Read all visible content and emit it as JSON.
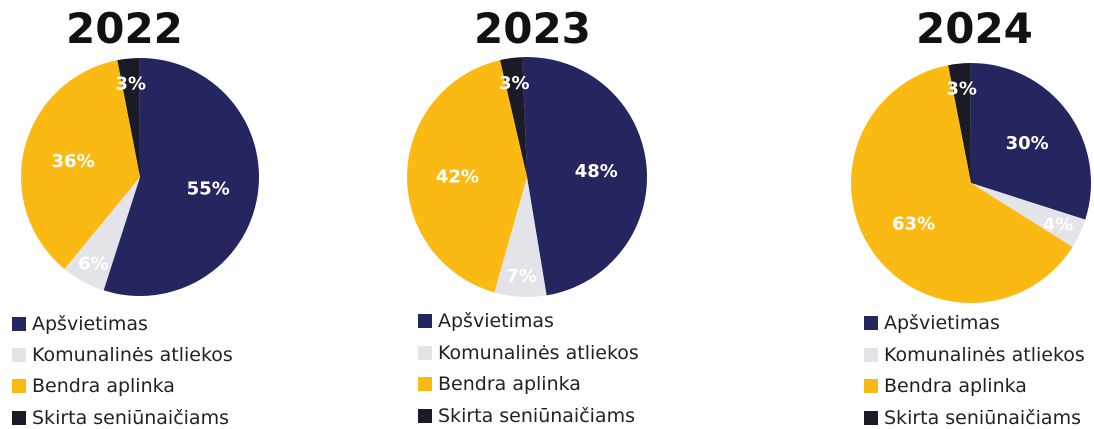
{
  "legend_colors": {
    "Apšvietimas": "#252560",
    "Komunalinės atliekos": "#e3e3ea",
    "Bendra aplinka": "#fbb913",
    "Skirta seniūnaičiams": "#1b1b28"
  },
  "legend_labels": [
    "Apšvietimas",
    "Komunalinės atliekos",
    "Bendra aplinka",
    "Skirta seniūnaičiams"
  ],
  "chart_data": [
    {
      "type": "pie",
      "title": "2022",
      "slices": [
        {
          "label": "Apšvietimas",
          "value": 55,
          "text": "55%",
          "color": "#252560"
        },
        {
          "label": "Komunalinės atliekos",
          "value": 6,
          "text": "6%",
          "color": "#e3e3ea"
        },
        {
          "label": "Bendra aplinka",
          "value": 36,
          "text": "36%",
          "color": "#fbb913"
        },
        {
          "label": "Skirta seniūnaičiams",
          "value": 3,
          "text": "3%",
          "color": "#1b1b28"
        }
      ],
      "legend": [
        "Apšvietimas",
        "Komunalinės atliekos",
        "Bendra aplinka",
        "Skirta seniūnaičiams"
      ]
    },
    {
      "type": "pie",
      "title": "2023",
      "slices": [
        {
          "label": "Apšvietimas",
          "value": 48,
          "text": "48%",
          "color": "#252560"
        },
        {
          "label": "Komunalinės atliekos",
          "value": 7,
          "text": "7%",
          "color": "#e3e3ea"
        },
        {
          "label": "Bendra aplinka",
          "value": 42,
          "text": "42%",
          "color": "#fbb913"
        },
        {
          "label": "Skirta seniūnaičiams",
          "value": 3,
          "text": "3%",
          "color": "#1b1b28"
        }
      ],
      "legend": [
        "Apšvietimas",
        "Komunalinės atliekos",
        "Bendra aplinka",
        "Skirta seniūnaičiams"
      ]
    },
    {
      "type": "pie",
      "title": "2024",
      "slices": [
        {
          "label": "Apšvietimas",
          "value": 30,
          "text": "30%",
          "color": "#252560"
        },
        {
          "label": "Komunalinės atliekos",
          "value": 4,
          "text": "4%",
          "color": "#e3e3ea"
        },
        {
          "label": "Bendra aplinka",
          "value": 63,
          "text": "63%",
          "color": "#fbb913"
        },
        {
          "label": "Skirta seniūnaičiams",
          "value": 3,
          "text": "3%",
          "color": "#1b1b28"
        }
      ],
      "legend": [
        "Apšvietimas",
        "Komunalinės atliekos",
        "Bendra aplinka",
        "Skirta seniūnaičiams"
      ]
    }
  ]
}
